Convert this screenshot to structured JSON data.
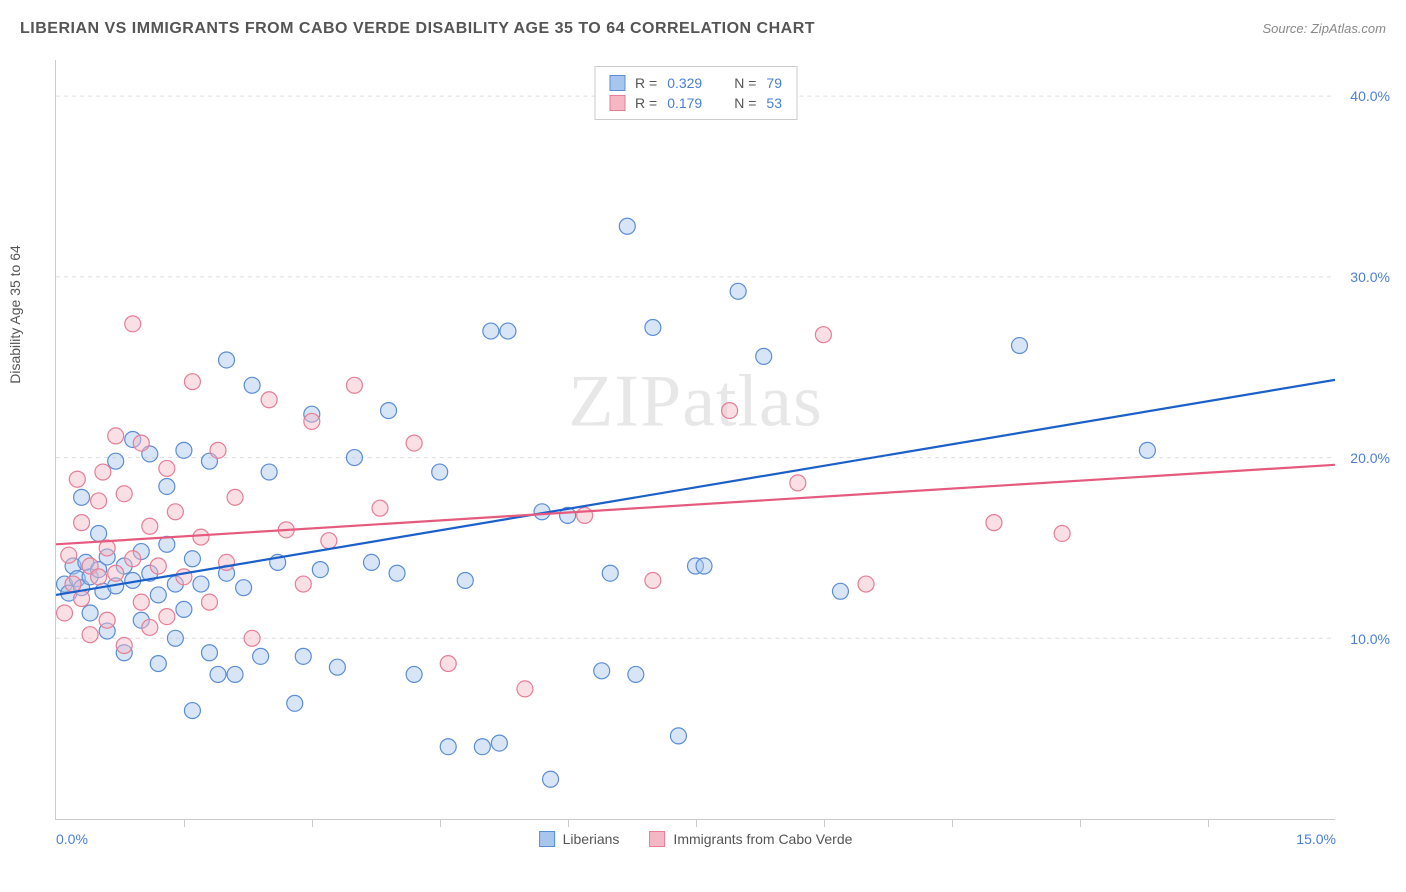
{
  "title": "LIBERIAN VS IMMIGRANTS FROM CABO VERDE DISABILITY AGE 35 TO 64 CORRELATION CHART",
  "source_label": "Source: ",
  "source_value": "ZipAtlas.com",
  "y_axis_label": "Disability Age 35 to 64",
  "watermark": "ZIPatlas",
  "chart": {
    "type": "scatter",
    "xlim": [
      0,
      15
    ],
    "ylim": [
      0,
      42
    ],
    "x_ticks": [
      0,
      15
    ],
    "x_tick_labels": [
      "0.0%",
      "15.0%"
    ],
    "x_minor_ticks": [
      1.5,
      3.0,
      4.5,
      6.0,
      7.5,
      9.0,
      10.5,
      12.0,
      13.5
    ],
    "y_ticks": [
      10,
      20,
      30,
      40
    ],
    "y_tick_labels": [
      "10.0%",
      "20.0%",
      "30.0%",
      "40.0%"
    ],
    "grid_color": "#dddddd",
    "background_color": "#ffffff",
    "marker_radius": 8,
    "marker_fill_opacity": 0.45,
    "marker_stroke_width": 1.2,
    "line_width": 2.2,
    "series": [
      {
        "name": "Liberians",
        "color_fill": "#a8c5ec",
        "color_stroke": "#5b8dd6",
        "line_color": "#1b5fc9",
        "r": "0.329",
        "n": "79",
        "trend_line": {
          "x1": 0,
          "y1": 12.4,
          "x2": 15,
          "y2": 24.3
        },
        "points": [
          [
            0.1,
            13.0
          ],
          [
            0.15,
            12.5
          ],
          [
            0.2,
            14.0
          ],
          [
            0.25,
            13.3
          ],
          [
            0.3,
            12.8
          ],
          [
            0.3,
            17.8
          ],
          [
            0.35,
            14.2
          ],
          [
            0.4,
            13.4
          ],
          [
            0.4,
            11.4
          ],
          [
            0.5,
            13.8
          ],
          [
            0.5,
            15.8
          ],
          [
            0.55,
            12.6
          ],
          [
            0.6,
            14.5
          ],
          [
            0.6,
            10.4
          ],
          [
            0.7,
            12.9
          ],
          [
            0.7,
            19.8
          ],
          [
            0.8,
            9.2
          ],
          [
            0.8,
            14.0
          ],
          [
            0.9,
            13.2
          ],
          [
            0.9,
            21.0
          ],
          [
            1.0,
            14.8
          ],
          [
            1.0,
            11.0
          ],
          [
            1.1,
            20.2
          ],
          [
            1.1,
            13.6
          ],
          [
            1.2,
            8.6
          ],
          [
            1.2,
            12.4
          ],
          [
            1.3,
            15.2
          ],
          [
            1.3,
            18.4
          ],
          [
            1.4,
            10.0
          ],
          [
            1.4,
            13.0
          ],
          [
            1.5,
            20.4
          ],
          [
            1.5,
            11.6
          ],
          [
            1.6,
            6.0
          ],
          [
            1.6,
            14.4
          ],
          [
            1.7,
            13.0
          ],
          [
            1.8,
            9.2
          ],
          [
            1.8,
            19.8
          ],
          [
            1.9,
            8.0
          ],
          [
            2.0,
            25.4
          ],
          [
            2.0,
            13.6
          ],
          [
            2.1,
            8.0
          ],
          [
            2.2,
            12.8
          ],
          [
            2.3,
            24.0
          ],
          [
            2.4,
            9.0
          ],
          [
            2.5,
            19.2
          ],
          [
            2.6,
            14.2
          ],
          [
            2.8,
            6.4
          ],
          [
            2.9,
            9.0
          ],
          [
            3.0,
            22.4
          ],
          [
            3.1,
            13.8
          ],
          [
            3.3,
            8.4
          ],
          [
            3.5,
            20.0
          ],
          [
            3.7,
            14.2
          ],
          [
            3.9,
            22.6
          ],
          [
            4.0,
            13.6
          ],
          [
            4.2,
            8.0
          ],
          [
            4.5,
            19.2
          ],
          [
            4.6,
            4.0
          ],
          [
            4.8,
            13.2
          ],
          [
            5.0,
            4.0
          ],
          [
            5.1,
            27.0
          ],
          [
            5.2,
            4.2
          ],
          [
            5.3,
            27.0
          ],
          [
            5.7,
            17.0
          ],
          [
            5.8,
            2.2
          ],
          [
            6.0,
            16.8
          ],
          [
            6.4,
            8.2
          ],
          [
            6.5,
            13.6
          ],
          [
            6.7,
            32.8
          ],
          [
            7.0,
            27.2
          ],
          [
            7.3,
            4.6
          ],
          [
            7.5,
            14.0
          ],
          [
            7.6,
            14.0
          ],
          [
            8.0,
            29.2
          ],
          [
            8.3,
            25.6
          ],
          [
            9.2,
            12.6
          ],
          [
            11.3,
            26.2
          ],
          [
            12.8,
            20.4
          ],
          [
            6.8,
            8.0
          ]
        ]
      },
      {
        "name": "Immigrants from Cabo Verde",
        "color_fill": "#f4b8c5",
        "color_stroke": "#e87d96",
        "line_color": "#e55a7d",
        "r": "0.179",
        "n": "53",
        "trend_line": {
          "x1": 0,
          "y1": 15.2,
          "x2": 15,
          "y2": 19.6
        },
        "points": [
          [
            0.1,
            11.4
          ],
          [
            0.15,
            14.6
          ],
          [
            0.2,
            13.0
          ],
          [
            0.25,
            18.8
          ],
          [
            0.3,
            12.2
          ],
          [
            0.3,
            16.4
          ],
          [
            0.4,
            14.0
          ],
          [
            0.4,
            10.2
          ],
          [
            0.5,
            13.4
          ],
          [
            0.5,
            17.6
          ],
          [
            0.55,
            19.2
          ],
          [
            0.6,
            11.0
          ],
          [
            0.6,
            15.0
          ],
          [
            0.7,
            21.2
          ],
          [
            0.7,
            13.6
          ],
          [
            0.8,
            9.6
          ],
          [
            0.8,
            18.0
          ],
          [
            0.9,
            14.4
          ],
          [
            0.9,
            27.4
          ],
          [
            1.0,
            12.0
          ],
          [
            1.0,
            20.8
          ],
          [
            1.1,
            10.6
          ],
          [
            1.1,
            16.2
          ],
          [
            1.2,
            14.0
          ],
          [
            1.3,
            19.4
          ],
          [
            1.3,
            11.2
          ],
          [
            1.4,
            17.0
          ],
          [
            1.5,
            13.4
          ],
          [
            1.6,
            24.2
          ],
          [
            1.7,
            15.6
          ],
          [
            1.8,
            12.0
          ],
          [
            1.9,
            20.4
          ],
          [
            2.0,
            14.2
          ],
          [
            2.1,
            17.8
          ],
          [
            2.3,
            10.0
          ],
          [
            2.5,
            23.2
          ],
          [
            2.7,
            16.0
          ],
          [
            2.9,
            13.0
          ],
          [
            3.0,
            22.0
          ],
          [
            3.2,
            15.4
          ],
          [
            3.5,
            24.0
          ],
          [
            3.8,
            17.2
          ],
          [
            4.2,
            20.8
          ],
          [
            4.6,
            8.6
          ],
          [
            5.5,
            7.2
          ],
          [
            6.2,
            16.8
          ],
          [
            7.0,
            13.2
          ],
          [
            7.9,
            22.6
          ],
          [
            8.7,
            18.6
          ],
          [
            9.0,
            26.8
          ],
          [
            9.5,
            13.0
          ],
          [
            11.0,
            16.4
          ],
          [
            11.8,
            15.8
          ]
        ]
      }
    ]
  },
  "legend_top": {
    "r_label": "R =",
    "n_label": "N ="
  }
}
